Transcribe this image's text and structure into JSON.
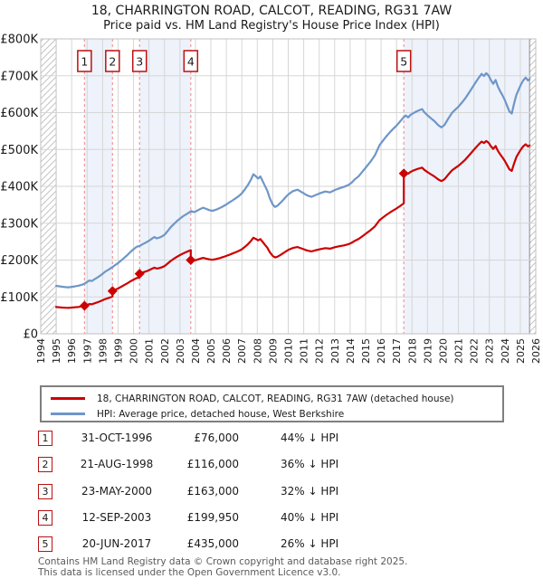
{
  "header": {
    "title": "18, CHARRINGTON ROAD, CALCOT, READING, RG31 7AW",
    "subtitle": "Price paid vs. HM Land Registry's House Price Index (HPI)"
  },
  "legend": {
    "items": [
      {
        "label": "18, CHARRINGTON ROAD, CALCOT, READING, RG31 7AW (detached house)",
        "color": "#cc0000"
      },
      {
        "label": "HPI: Average price, detached house, West Berkshire",
        "color": "#6e96c8"
      }
    ]
  },
  "sales_table": {
    "rows": [
      {
        "num": "1",
        "date": "31-OCT-1996",
        "price": "£76,000",
        "vs_hpi": "44% ↓ HPI"
      },
      {
        "num": "2",
        "date": "21-AUG-1998",
        "price": "£116,000",
        "vs_hpi": "36% ↓ HPI"
      },
      {
        "num": "3",
        "date": "23-MAY-2000",
        "price": "£163,000",
        "vs_hpi": "32% ↓ HPI"
      },
      {
        "num": "4",
        "date": "12-SEP-2003",
        "price": "£199,950",
        "vs_hpi": "40% ↓ HPI"
      },
      {
        "num": "5",
        "date": "20-JUN-2017",
        "price": "£435,000",
        "vs_hpi": "26% ↓ HPI"
      }
    ]
  },
  "footer": {
    "line1": "Contains HM Land Registry data © Crown copyright and database right 2025.",
    "line2": "This data is licensed under the Open Government Licence v3.0."
  },
  "chart_data": {
    "type": "line",
    "title": "Price paid vs. HM Land Registry's House Price Index (HPI)",
    "xlim": [
      1994,
      2026
    ],
    "ylim": [
      0,
      800000
    ],
    "x_ticks": [
      1994,
      1995,
      1996,
      1997,
      1998,
      1999,
      2000,
      2001,
      2002,
      2003,
      2004,
      2005,
      2006,
      2007,
      2008,
      2009,
      2010,
      2011,
      2012,
      2013,
      2014,
      2015,
      2016,
      2017,
      2018,
      2019,
      2020,
      2021,
      2022,
      2023,
      2024,
      2025,
      2026
    ],
    "y_ticks": [
      {
        "value": 0,
        "label": "£0"
      },
      {
        "value": 100000,
        "label": "£100K"
      },
      {
        "value": 200000,
        "label": "£200K"
      },
      {
        "value": 300000,
        "label": "£300K"
      },
      {
        "value": 400000,
        "label": "£400K"
      },
      {
        "value": 500000,
        "label": "£500K"
      },
      {
        "value": 600000,
        "label": "£600K"
      },
      {
        "value": 700000,
        "label": "£700K"
      },
      {
        "value": 800000,
        "label": "£800K"
      }
    ],
    "data_start": 1995.0,
    "data_end": 2025.6,
    "grid": true,
    "legend_position": "below",
    "colors": {
      "property_line": "#cc0000",
      "hpi_line": "#6e96c8",
      "sale_dash": "#f09a9a",
      "ownership_band": "#eef2fa",
      "grid_line": "#d6d6d6",
      "plot_border": "#c0c0c0",
      "hatch_line": "#c4c4c4",
      "data_edge_line": "#8a8a8a",
      "marker_box_border": "#bb1111"
    },
    "series": [
      {
        "name": "18, CHARRINGTON ROAD, CALCOT, READING, RG31 7AW (detached house)",
        "role": "price_paid_indexed"
      },
      {
        "name": "HPI: Average price, detached house, West Berkshire",
        "role": "hpi"
      }
    ],
    "sales": [
      {
        "num": "1",
        "date": "31-OCT-1996",
        "year": 1996.83,
        "price": 76000,
        "pct_below_hpi": 44
      },
      {
        "num": "2",
        "date": "21-AUG-1998",
        "year": 1998.64,
        "price": 116000,
        "pct_below_hpi": 36
      },
      {
        "num": "3",
        "date": "23-MAY-2000",
        "year": 2000.39,
        "price": 163000,
        "pct_below_hpi": 32
      },
      {
        "num": "4",
        "date": "12-SEP-2003",
        "year": 2003.7,
        "price": 199950,
        "pct_below_hpi": 40
      },
      {
        "num": "5",
        "date": "20-JUN-2017",
        "year": 2017.47,
        "price": 435000,
        "pct_below_hpi": 26
      }
    ],
    "hpi_points": [
      [
        1995.0,
        130000
      ],
      [
        1995.2,
        128800
      ],
      [
        1995.4,
        127500
      ],
      [
        1995.6,
        126600
      ],
      [
        1995.8,
        126200
      ],
      [
        1996.0,
        127300
      ],
      [
        1996.2,
        128600
      ],
      [
        1996.45,
        130500
      ],
      [
        1996.65,
        133000
      ],
      [
        1996.83,
        136000
      ],
      [
        1997.0,
        140500
      ],
      [
        1997.15,
        144500
      ],
      [
        1997.3,
        143000
      ],
      [
        1997.5,
        148500
      ],
      [
        1997.7,
        153500
      ],
      [
        1997.85,
        158000
      ],
      [
        1998.0,
        163000
      ],
      [
        1998.2,
        169500
      ],
      [
        1998.4,
        174500
      ],
      [
        1998.64,
        181000
      ],
      [
        1998.8,
        186000
      ],
      [
        1999.0,
        192000
      ],
      [
        1999.2,
        199000
      ],
      [
        1999.4,
        206500
      ],
      [
        1999.6,
        213500
      ],
      [
        1999.8,
        222000
      ],
      [
        2000.0,
        229500
      ],
      [
        2000.2,
        236000
      ],
      [
        2000.43,
        239000
      ],
      [
        2000.6,
        243500
      ],
      [
        2000.8,
        247500
      ],
      [
        2001.0,
        252500
      ],
      [
        2001.2,
        258500
      ],
      [
        2001.35,
        262500
      ],
      [
        2001.5,
        259000
      ],
      [
        2001.7,
        261500
      ],
      [
        2001.85,
        264500
      ],
      [
        2002.0,
        268500
      ],
      [
        2002.2,
        278500
      ],
      [
        2002.4,
        289000
      ],
      [
        2002.6,
        297500
      ],
      [
        2002.8,
        305500
      ],
      [
        2003.0,
        312500
      ],
      [
        2003.2,
        319000
      ],
      [
        2003.45,
        325500
      ],
      [
        2003.73,
        333000
      ],
      [
        2003.9,
        330000
      ],
      [
        2004.1,
        333500
      ],
      [
        2004.3,
        338500
      ],
      [
        2004.5,
        342000
      ],
      [
        2004.7,
        339000
      ],
      [
        2004.9,
        335500
      ],
      [
        2005.1,
        333500
      ],
      [
        2005.35,
        337000
      ],
      [
        2005.6,
        341500
      ],
      [
        2005.8,
        346000
      ],
      [
        2006.0,
        351000
      ],
      [
        2006.2,
        356500
      ],
      [
        2006.4,
        362000
      ],
      [
        2006.6,
        367500
      ],
      [
        2006.8,
        373500
      ],
      [
        2007.0,
        381000
      ],
      [
        2007.2,
        392000
      ],
      [
        2007.4,
        404500
      ],
      [
        2007.6,
        419500
      ],
      [
        2007.75,
        433000
      ],
      [
        2007.9,
        427500
      ],
      [
        2008.05,
        421000
      ],
      [
        2008.2,
        427000
      ],
      [
        2008.35,
        414000
      ],
      [
        2008.5,
        400500
      ],
      [
        2008.65,
        388000
      ],
      [
        2008.8,
        368500
      ],
      [
        2009.0,
        350500
      ],
      [
        2009.15,
        344000
      ],
      [
        2009.3,
        347500
      ],
      [
        2009.5,
        355500
      ],
      [
        2009.7,
        364500
      ],
      [
        2009.85,
        371500
      ],
      [
        2010.0,
        378000
      ],
      [
        2010.3,
        387000
      ],
      [
        2010.6,
        391000
      ],
      [
        2010.9,
        383500
      ],
      [
        2011.2,
        376000
      ],
      [
        2011.5,
        371500
      ],
      [
        2011.8,
        377000
      ],
      [
        2012.1,
        382000
      ],
      [
        2012.4,
        386000
      ],
      [
        2012.7,
        383500
      ],
      [
        2013.0,
        390000
      ],
      [
        2013.3,
        394500
      ],
      [
        2013.6,
        398500
      ],
      [
        2013.9,
        404000
      ],
      [
        2014.1,
        410000
      ],
      [
        2014.3,
        419000
      ],
      [
        2014.55,
        427500
      ],
      [
        2014.8,
        440000
      ],
      [
        2015.0,
        450500
      ],
      [
        2015.3,
        466000
      ],
      [
        2015.6,
        484000
      ],
      [
        2015.9,
        512000
      ],
      [
        2016.1,
        523000
      ],
      [
        2016.35,
        536000
      ],
      [
        2016.6,
        548000
      ],
      [
        2016.8,
        556500
      ],
      [
        2017.0,
        565000
      ],
      [
        2017.2,
        574500
      ],
      [
        2017.47,
        588000
      ],
      [
        2017.6,
        592000
      ],
      [
        2017.75,
        587000
      ],
      [
        2017.9,
        593500
      ],
      [
        2018.1,
        599000
      ],
      [
        2018.3,
        603500
      ],
      [
        2018.5,
        607000
      ],
      [
        2018.65,
        609500
      ],
      [
        2018.8,
        601000
      ],
      [
        2019.0,
        593000
      ],
      [
        2019.2,
        585500
      ],
      [
        2019.45,
        577000
      ],
      [
        2019.7,
        566000
      ],
      [
        2019.9,
        560000
      ],
      [
        2020.1,
        566500
      ],
      [
        2020.35,
        584000
      ],
      [
        2020.6,
        600000
      ],
      [
        2020.8,
        608000
      ],
      [
        2021.0,
        616000
      ],
      [
        2021.2,
        626000
      ],
      [
        2021.45,
        639000
      ],
      [
        2021.7,
        655000
      ],
      [
        2021.9,
        668000
      ],
      [
        2022.1,
        681000
      ],
      [
        2022.3,
        694000
      ],
      [
        2022.5,
        705000
      ],
      [
        2022.65,
        699500
      ],
      [
        2022.8,
        707000
      ],
      [
        2022.95,
        700500
      ],
      [
        2023.1,
        688000
      ],
      [
        2023.25,
        678000
      ],
      [
        2023.4,
        688500
      ],
      [
        2023.55,
        671000
      ],
      [
        2023.7,
        658000
      ],
      [
        2023.85,
        647000
      ],
      [
        2024.0,
        634000
      ],
      [
        2024.15,
        618000
      ],
      [
        2024.3,
        603000
      ],
      [
        2024.45,
        597500
      ],
      [
        2024.6,
        625000
      ],
      [
        2024.75,
        648000
      ],
      [
        2024.9,
        663000
      ],
      [
        2025.05,
        677000
      ],
      [
        2025.2,
        688000
      ],
      [
        2025.35,
        695000
      ],
      [
        2025.5,
        687000
      ],
      [
        2025.6,
        691000
      ]
    ]
  }
}
